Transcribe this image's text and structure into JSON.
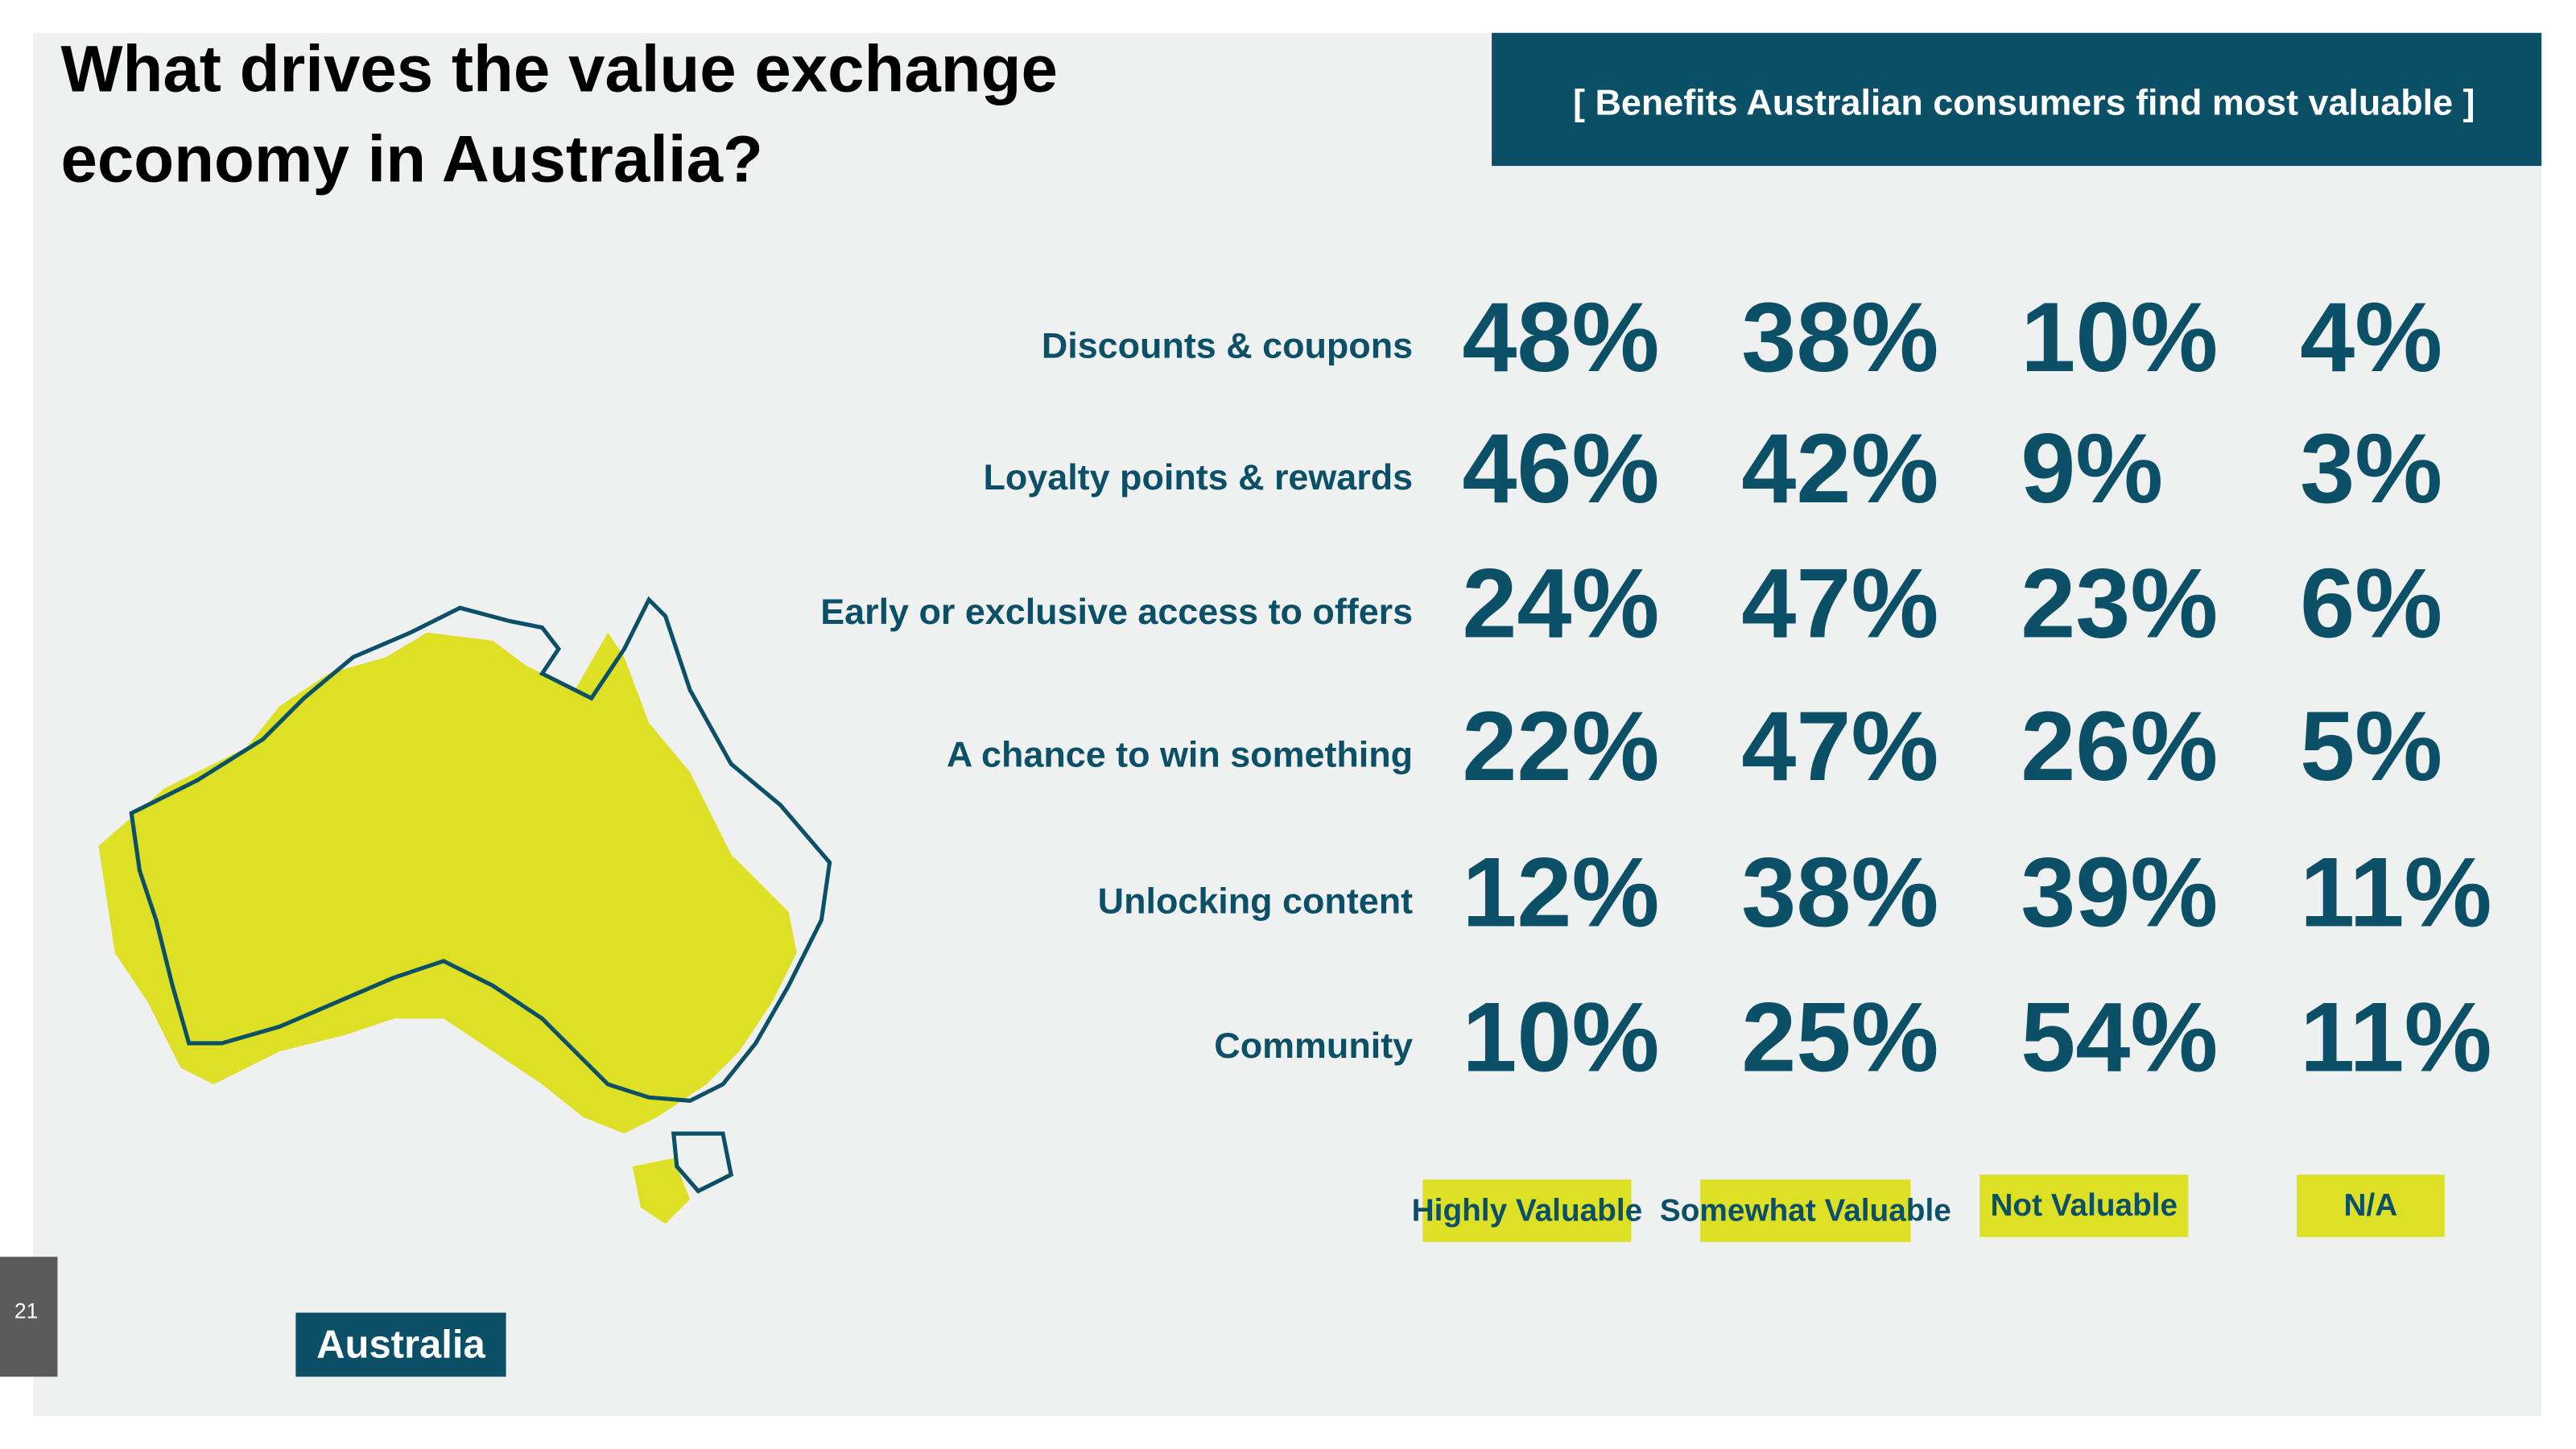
{
  "header": {
    "title": [
      "What drives the value exchange",
      "economy in Australia?"
    ],
    "subtitle": "[ Benefits Australian consumers find most valuable ]"
  },
  "table": {
    "rows": [
      {
        "label": "Discounts & coupons",
        "values": [
          "48%",
          "38%",
          "10%",
          "4%"
        ]
      },
      {
        "label": "Loyalty points & rewards",
        "values": [
          "46%",
          "42%",
          "9%",
          "3%"
        ]
      },
      {
        "label": "Early or exclusive access to offers",
        "values": [
          "24%",
          "47%",
          "23%",
          "6%"
        ]
      },
      {
        "label": "A chance to win something",
        "values": [
          "22%",
          "47%",
          "26%",
          "5%"
        ]
      },
      {
        "label": "Unlocking content",
        "values": [
          "12%",
          "38%",
          "39%",
          "11%"
        ]
      },
      {
        "label": "Community",
        "values": [
          "10%",
          "25%",
          "54%",
          "11%"
        ]
      }
    ],
    "columns": [
      "Highly Valuable",
      "Somewhat Valuable",
      "Not Valuable",
      "N/A"
    ]
  },
  "map_label": "Australia",
  "page_number": "21"
}
